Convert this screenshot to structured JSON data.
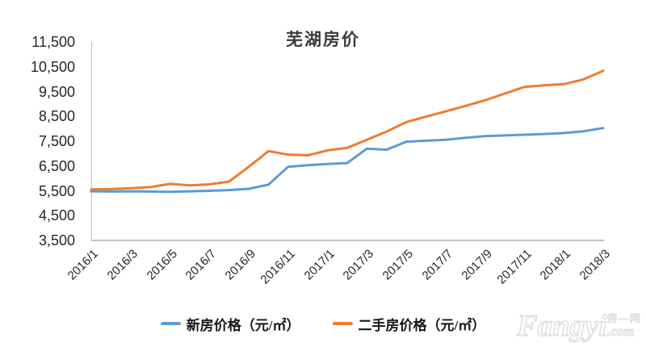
{
  "title": "芜湖房价",
  "watermark": {
    "brand": "Fangyi",
    "cn": "房—网",
    "tld": ".com"
  },
  "chart_data": {
    "type": "line",
    "title": "芜湖房价",
    "x": [
      "2016/1",
      "2016/2",
      "2016/3",
      "2016/4",
      "2016/5",
      "2016/6",
      "2016/7",
      "2016/8",
      "2016/9",
      "2016/10",
      "2016/11",
      "2016/12",
      "2017/1",
      "2017/2",
      "2017/3",
      "2017/4",
      "2017/5",
      "2017/6",
      "2017/7",
      "2017/8",
      "2017/9",
      "2017/10",
      "2017/11",
      "2017/12",
      "2018/1",
      "2018/2",
      "2018/3"
    ],
    "x_tick_labels": [
      "2016/1",
      "2016/3",
      "2016/5",
      "2016/7",
      "2016/9",
      "2016/11",
      "2017/1",
      "2017/3",
      "2017/5",
      "2017/7",
      "2017/9",
      "2017/11",
      "2018/1",
      "2018/3"
    ],
    "series": [
      {
        "name": "新房价格（元/㎡）",
        "color": "#5B9BD5",
        "values": [
          5480,
          5470,
          5480,
          5470,
          5460,
          5480,
          5500,
          5530,
          5580,
          5750,
          6470,
          6530,
          6580,
          6620,
          7200,
          7160,
          7480,
          7520,
          7560,
          7640,
          7700,
          7730,
          7760,
          7790,
          7830,
          7900,
          8030
        ]
      },
      {
        "name": "二手房价格（元/㎡）",
        "color": "#ED7C31",
        "values": [
          5560,
          5570,
          5600,
          5650,
          5780,
          5720,
          5760,
          5870,
          6470,
          7100,
          6960,
          6930,
          7130,
          7230,
          7560,
          7890,
          8270,
          8490,
          8700,
          8920,
          9150,
          9420,
          9690,
          9750,
          9800,
          9990,
          10340
        ]
      }
    ],
    "ylim": [
      3500,
      11500
    ],
    "ytick_step": 1000,
    "ytick_labels": [
      "3,500",
      "4,500",
      "5,500",
      "6,500",
      "7,500",
      "8,500",
      "9,500",
      "10,500",
      "11,500"
    ],
    "xlabel": "",
    "ylabel": "",
    "grid": false,
    "legend_position": "bottom"
  }
}
